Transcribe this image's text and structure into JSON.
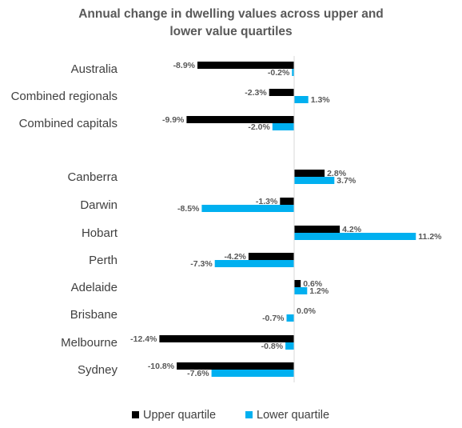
{
  "chart_data": {
    "type": "bar",
    "orientation": "horizontal",
    "title_lines": [
      "Annual change in dwelling values across upper and",
      "lower value quartiles"
    ],
    "categories": [
      "Australia",
      "Combined regionals",
      "Combined capitals",
      "",
      "Canberra",
      "Darwin",
      "Hobart",
      "Perth",
      "Adelaide",
      "Brisbane",
      "Melbourne",
      "Sydney"
    ],
    "series": [
      {
        "name": "Upper quartile",
        "color": "#000000",
        "values": [
          -8.9,
          -2.3,
          -9.9,
          null,
          2.8,
          -1.3,
          4.2,
          -4.2,
          0.6,
          0.0,
          -12.4,
          -10.8
        ],
        "labels": [
          "-8.9%",
          "-2.3%",
          "-9.9%",
          "",
          "2.8%",
          "-1.3%",
          "4.2%",
          "-4.2%",
          "0.6%",
          "0.0%",
          "-12.4%",
          "-10.8%"
        ]
      },
      {
        "name": "Lower quartile",
        "color": "#00B0F0",
        "values": [
          -0.2,
          1.3,
          -2.0,
          null,
          3.7,
          -8.5,
          11.2,
          -7.3,
          1.2,
          -0.7,
          -0.8,
          -7.6
        ],
        "labels": [
          "-0.2%",
          "1.3%",
          "-2.0%",
          "",
          "3.7%",
          "-8.5%",
          "11.2%",
          "-7.3%",
          "1.2%",
          "-0.7%",
          "-0.8%",
          "-7.6%"
        ]
      }
    ],
    "xlim": [
      -12.4,
      11.2
    ],
    "grid": false,
    "legend": "bottom-center"
  }
}
